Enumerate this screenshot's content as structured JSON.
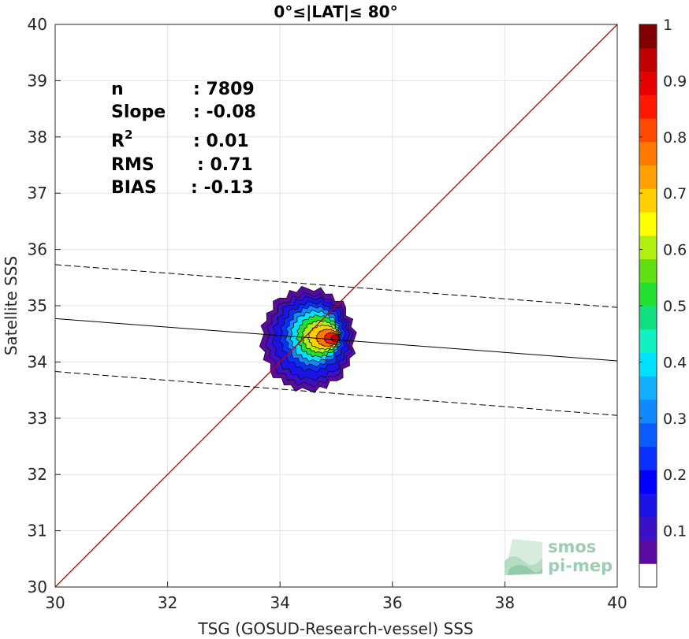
{
  "chart_data": {
    "type": "scatter",
    "subtype": "density-contour",
    "title": "0°≤|LAT|≤ 80°",
    "xlabel": "TSG (GOSUD-Research-vessel) SSS",
    "ylabel": "Satellite SSS",
    "xlim": [
      30,
      40
    ],
    "ylim": [
      30,
      40
    ],
    "xticks": [
      "30",
      "32",
      "34",
      "36",
      "38",
      "40"
    ],
    "yticks": [
      "30",
      "31",
      "32",
      "33",
      "34",
      "35",
      "36",
      "37",
      "38",
      "39",
      "40"
    ],
    "grid": true,
    "stats": [
      {
        "label": "n",
        "value": ": 7809"
      },
      {
        "label": "Slope",
        "value": ": -0.08"
      },
      {
        "label": "R",
        "sup": "2",
        "value": ": 0.01"
      },
      {
        "label": "RMS",
        "value": ": 0.71"
      },
      {
        "label": "BIAS",
        "value": ": -0.13"
      }
    ],
    "identity_line": {
      "x": [
        30,
        40
      ],
      "y": [
        30,
        40
      ],
      "color": "#c00000"
    },
    "fit_line": {
      "x": [
        30,
        40
      ],
      "y": [
        34.77,
        34.02
      ],
      "color": "#000000"
    },
    "fit_upper": {
      "x": [
        30,
        40
      ],
      "y": [
        35.73,
        34.97
      ],
      "style": "dashed"
    },
    "fit_lower": {
      "x": [
        30,
        40
      ],
      "y": [
        33.83,
        33.05
      ],
      "style": "dashed"
    },
    "density_peak": {
      "x": 34.98,
      "y": 34.42
    },
    "colorbar": {
      "ticks": [
        "0.1",
        "0.2",
        "0.3",
        "0.4",
        "0.5",
        "0.6",
        "0.7",
        "0.8",
        "0.9",
        "1"
      ],
      "range": [
        0,
        1
      ],
      "colors": [
        "#ffffff",
        "#5a0aa0",
        "#3a10c8",
        "#1a12e6",
        "#0000ff",
        "#0a30ff",
        "#0a5aff",
        "#1088ff",
        "#10b0ff",
        "#00e0ff",
        "#10f0c0",
        "#10e080",
        "#20e030",
        "#60e010",
        "#b0f010",
        "#ffff00",
        "#ffd000",
        "#ffa000",
        "#ff7800",
        "#ff4800",
        "#ff1800",
        "#e80000",
        "#c00000",
        "#800000"
      ]
    }
  },
  "logo": {
    "line1": "smos",
    "line2": "pi-mep"
  }
}
